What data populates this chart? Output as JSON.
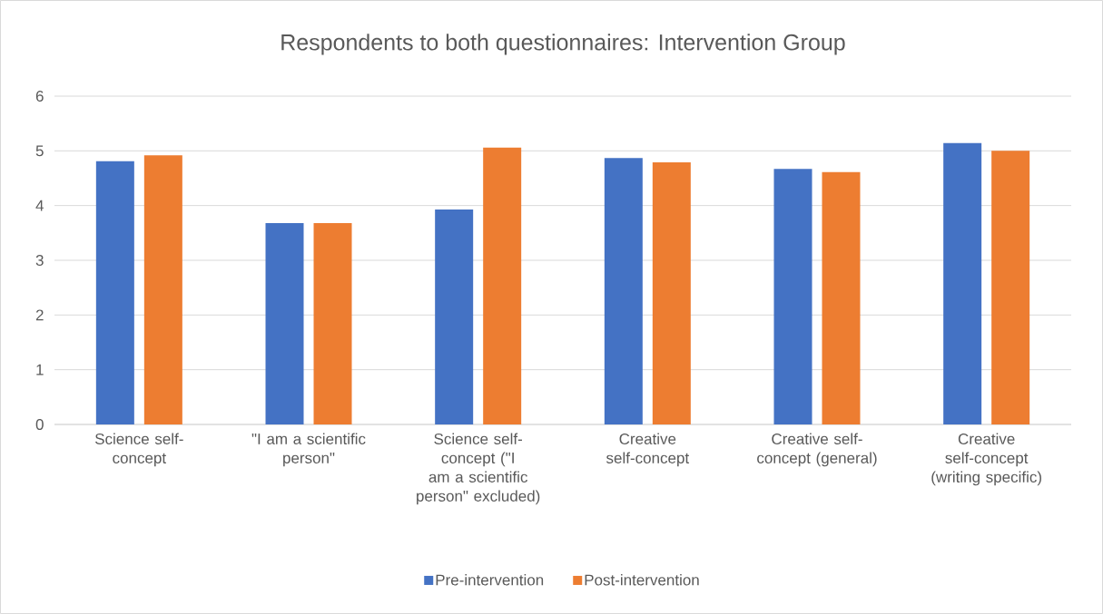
{
  "chart_data": {
    "type": "bar",
    "title": "Respondents to both questionnaires: Intervention Group",
    "categories": [
      "Science self-concept",
      "\"I am a scientific person\"",
      "Science self-concept (\"I am a scientific person\" excluded)",
      "Creative self-concept",
      "Creative self-concept (general)",
      "Creative self-concept (writing specific)"
    ],
    "series": [
      {
        "name": "Pre-intervention",
        "color": "#4472c4",
        "values": [
          4.81,
          3.68,
          3.93,
          4.87,
          4.67,
          5.14
        ]
      },
      {
        "name": "Post-intervention",
        "color": "#ed7d31",
        "values": [
          4.92,
          3.68,
          5.06,
          4.79,
          4.61,
          5.0
        ]
      }
    ],
    "ylim": [
      0,
      6
    ],
    "yticks": [
      0,
      1,
      2,
      3,
      4,
      5,
      6
    ],
    "grid": "y",
    "legend": "bottom"
  }
}
